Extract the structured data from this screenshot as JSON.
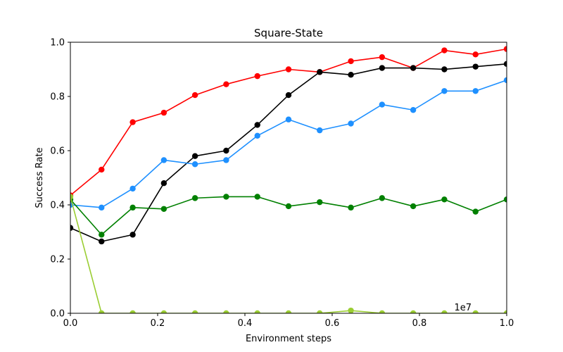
{
  "chart_data": {
    "type": "line",
    "title": "Square-State",
    "xlabel": "Environment steps",
    "ylabel": "Success Rate",
    "x_offset_text": "1e7",
    "xlim": [
      0,
      1.0
    ],
    "ylim": [
      0,
      1.0
    ],
    "xticks": [
      "0.0",
      "0.2",
      "0.4",
      "0.6",
      "0.8",
      "1.0"
    ],
    "yticks": [
      "0.0",
      "0.2",
      "0.4",
      "0.6",
      "0.8",
      "1.0"
    ],
    "grid": false,
    "x": [
      0.0,
      0.0714,
      0.1429,
      0.2143,
      0.2857,
      0.3571,
      0.4286,
      0.5,
      0.5714,
      0.6429,
      0.7143,
      0.7857,
      0.8571,
      0.9286,
      1.0
    ],
    "series": [
      {
        "color": "#ff0000",
        "values": [
          0.435,
          0.53,
          0.705,
          0.74,
          0.805,
          0.845,
          0.875,
          0.9,
          0.89,
          0.93,
          0.945,
          0.905,
          0.97,
          0.955,
          0.975
        ]
      },
      {
        "color": "#000000",
        "values": [
          0.315,
          0.265,
          0.29,
          0.48,
          0.58,
          0.6,
          0.695,
          0.805,
          0.89,
          0.88,
          0.905,
          0.905,
          0.9,
          0.91,
          0.92
        ]
      },
      {
        "color": "#1e90ff",
        "values": [
          0.4,
          0.39,
          0.46,
          0.565,
          0.55,
          0.565,
          0.655,
          0.715,
          0.675,
          0.7,
          0.77,
          0.75,
          0.82,
          0.82,
          0.86
        ]
      },
      {
        "color": "#008000",
        "values": [
          0.42,
          0.29,
          0.39,
          0.385,
          0.425,
          0.43,
          0.43,
          0.395,
          0.41,
          0.39,
          0.425,
          0.395,
          0.42,
          0.375,
          0.42
        ]
      },
      {
        "color": "#9acd32",
        "values": [
          0.43,
          0.0,
          0.0,
          0.0,
          0.0,
          0.0,
          0.0,
          0.0,
          0.0,
          0.01,
          0.0,
          0.0,
          0.0,
          0.0,
          0.0
        ]
      }
    ]
  }
}
